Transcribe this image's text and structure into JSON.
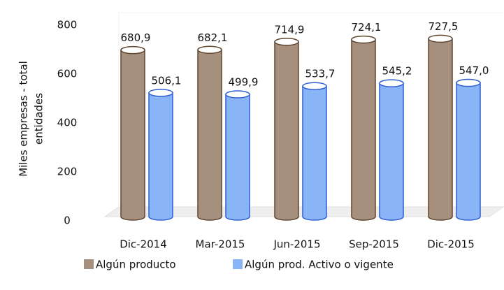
{
  "chart_data": {
    "type": "bar",
    "ylabel": [
      "Miles empresas - total",
      "entidades"
    ],
    "categories": [
      "Dic-2014",
      "Mar-2015",
      "Jun-2015",
      "Sep-2015",
      "Dic-2015"
    ],
    "series": [
      {
        "name": "Algún producto",
        "color": "#a68f7c",
        "edge": "#5e4630",
        "values": [
          680.9,
          682.1,
          714.9,
          724.1,
          727.5
        ],
        "value_labels": [
          "680,9",
          "682,1",
          "714,9",
          "724,1",
          "727,5"
        ]
      },
      {
        "name": "Algún prod. Activo o vigente",
        "color": "#8ab4f8",
        "edge": "#2f5fd0",
        "values": [
          506.1,
          499.9,
          533.7,
          545.2,
          547.0
        ],
        "value_labels": [
          "506,1",
          "499,9",
          "533,7",
          "545,2",
          "547,0"
        ]
      }
    ],
    "ylim": [
      0,
      800
    ],
    "yticks": [
      0,
      200,
      400,
      600,
      800
    ],
    "grid": false,
    "legend": "bottom"
  }
}
